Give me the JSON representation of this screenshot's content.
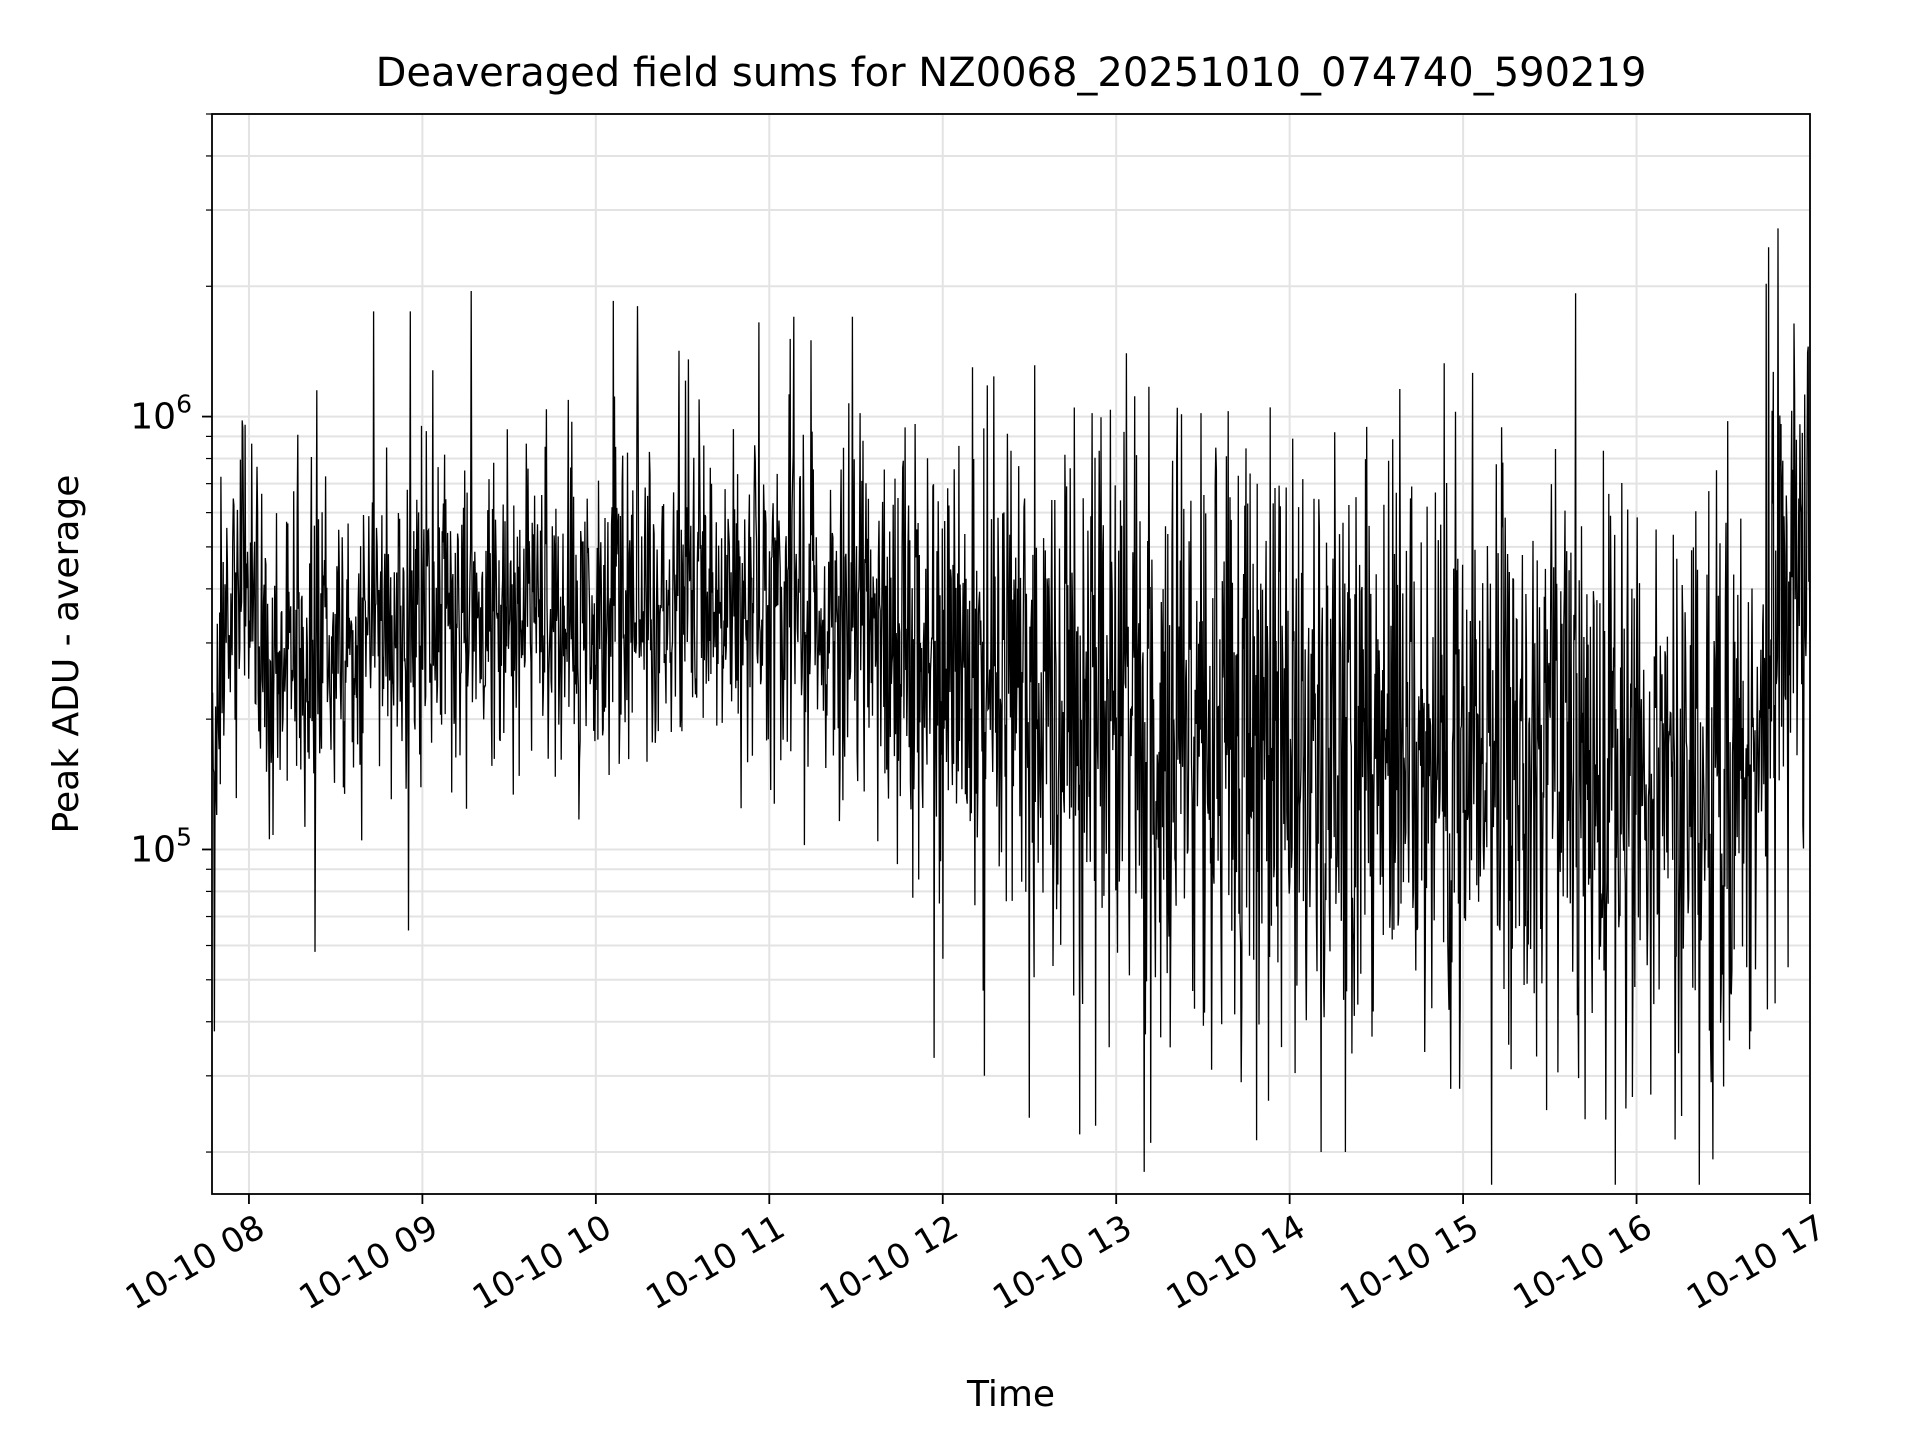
{
  "chart_data": {
    "type": "line",
    "title": "Deaveraged field sums for NZ0068_20251010_074740_590219",
    "xlabel": "Time",
    "ylabel": "Peak ADU - average",
    "yscale": "log",
    "xlim_hours": [
      7.787,
      17.0
    ],
    "ylim": [
      16000,
      5000000
    ],
    "grid": true,
    "x_ticks": [
      {
        "hour": 8,
        "label": "10-10 08"
      },
      {
        "hour": 9,
        "label": "10-10 09"
      },
      {
        "hour": 10,
        "label": "10-10 10"
      },
      {
        "hour": 11,
        "label": "10-10 11"
      },
      {
        "hour": 12,
        "label": "10-10 12"
      },
      {
        "hour": 13,
        "label": "10-10 13"
      },
      {
        "hour": 14,
        "label": "10-10 14"
      },
      {
        "hour": 15,
        "label": "10-10 15"
      },
      {
        "hour": 16,
        "label": "10-10 16"
      },
      {
        "hour": 17,
        "label": "10-10 17"
      }
    ],
    "y_ticks": [
      {
        "value": 100000,
        "label_base": "10",
        "label_exp": "5"
      },
      {
        "value": 1000000,
        "label_base": "10",
        "label_exp": "6"
      }
    ],
    "series": [
      {
        "name": "Peak ADU - average",
        "color": "#000000",
        "trend": [
          [
            7.79,
            150000
          ],
          [
            7.95,
            500000
          ],
          [
            8.1,
            260000
          ],
          [
            8.3,
            300000
          ],
          [
            8.6,
            310000
          ],
          [
            9.0,
            330000
          ],
          [
            9.5,
            350000
          ],
          [
            10.0,
            360000
          ],
          [
            10.5,
            370000
          ],
          [
            10.9,
            390000
          ],
          [
            11.1,
            430000
          ],
          [
            11.35,
            340000
          ],
          [
            11.6,
            290000
          ],
          [
            12.0,
            260000
          ],
          [
            12.5,
            230000
          ],
          [
            13.0,
            210000
          ],
          [
            13.5,
            190000
          ],
          [
            14.0,
            180000
          ],
          [
            14.5,
            170000
          ],
          [
            15.0,
            165000
          ],
          [
            15.5,
            160000
          ],
          [
            16.0,
            150000
          ],
          [
            16.3,
            130000
          ],
          [
            16.6,
            120000
          ],
          [
            16.7,
            200000
          ],
          [
            16.85,
            400000
          ],
          [
            17.0,
            420000
          ]
        ],
        "spikes": [
          [
            7.96,
            980000
          ],
          [
            8.39,
            1150000
          ],
          [
            8.72,
            1750000
          ],
          [
            8.93,
            1750000
          ],
          [
            9.06,
            1280000
          ],
          [
            9.28,
            1950000
          ],
          [
            10.1,
            1850000
          ],
          [
            10.24,
            1800000
          ],
          [
            10.48,
            1420000
          ],
          [
            10.94,
            1650000
          ],
          [
            11.14,
            1700000
          ],
          [
            11.24,
            1500000
          ],
          [
            11.48,
            1700000
          ],
          [
            12.17,
            1300000
          ],
          [
            13.06,
            1400000
          ],
          [
            14.26,
            920000
          ],
          [
            15.48,
            750000
          ],
          [
            15.95,
            610000
          ],
          [
            16.95,
            600000
          ]
        ],
        "dips": [
          [
            7.8,
            38000
          ],
          [
            8.38,
            58000
          ],
          [
            8.92,
            65000
          ],
          [
            11.95,
            33000
          ],
          [
            12.24,
            30000
          ],
          [
            12.5,
            24000
          ],
          [
            12.88,
            23000
          ],
          [
            13.16,
            18000
          ],
          [
            13.2,
            21000
          ],
          [
            13.55,
            31000
          ],
          [
            13.72,
            29000
          ],
          [
            14.18,
            20000
          ],
          [
            14.32,
            20000
          ],
          [
            14.98,
            28000
          ],
          [
            15.48,
            25000
          ],
          [
            16.43,
            29000
          ],
          [
            16.66,
            38000
          ]
        ]
      }
    ]
  }
}
